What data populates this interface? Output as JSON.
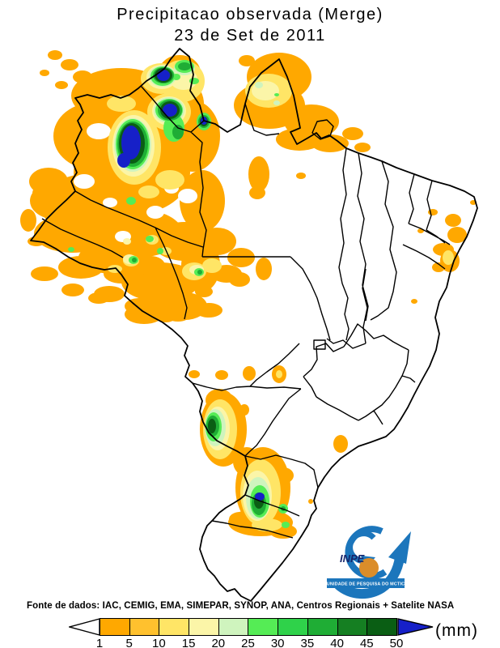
{
  "title": {
    "line1": "Precipitacao observada (Merge)",
    "line2": "23 de Set de 2011"
  },
  "footer": {
    "source_label": "Fonte de dados: IAC, CEMIG, EMA, SIMEPAR, SYNOP, ANA, Centros Regionais + Satelite NASA",
    "unit_label": "(mm)"
  },
  "legend": {
    "tick_values": [
      "1",
      "5",
      "10",
      "15",
      "20",
      "25",
      "30",
      "35",
      "40",
      "45",
      "50"
    ],
    "colors": [
      "#FFA800",
      "#FFC12E",
      "#FFE566",
      "#FBF5A8",
      "#CFF4BE",
      "#55EC55",
      "#2FD24A",
      "#1FAD35",
      "#157F22",
      "#0A5E14"
    ],
    "underflow_color": "#FFFFFF",
    "overflow_color": "#1620C8",
    "border_color": "#000000"
  },
  "map": {
    "region": "Brazil",
    "outline_color": "#000000",
    "heavy_rain_color": "#0E14B4"
  },
  "logo": {
    "acronym": "INPE",
    "banner": "UNIDADE DE PESQUISA DO MCTIC",
    "blue": "#1C76BC",
    "orange": "#DB8D2A"
  }
}
